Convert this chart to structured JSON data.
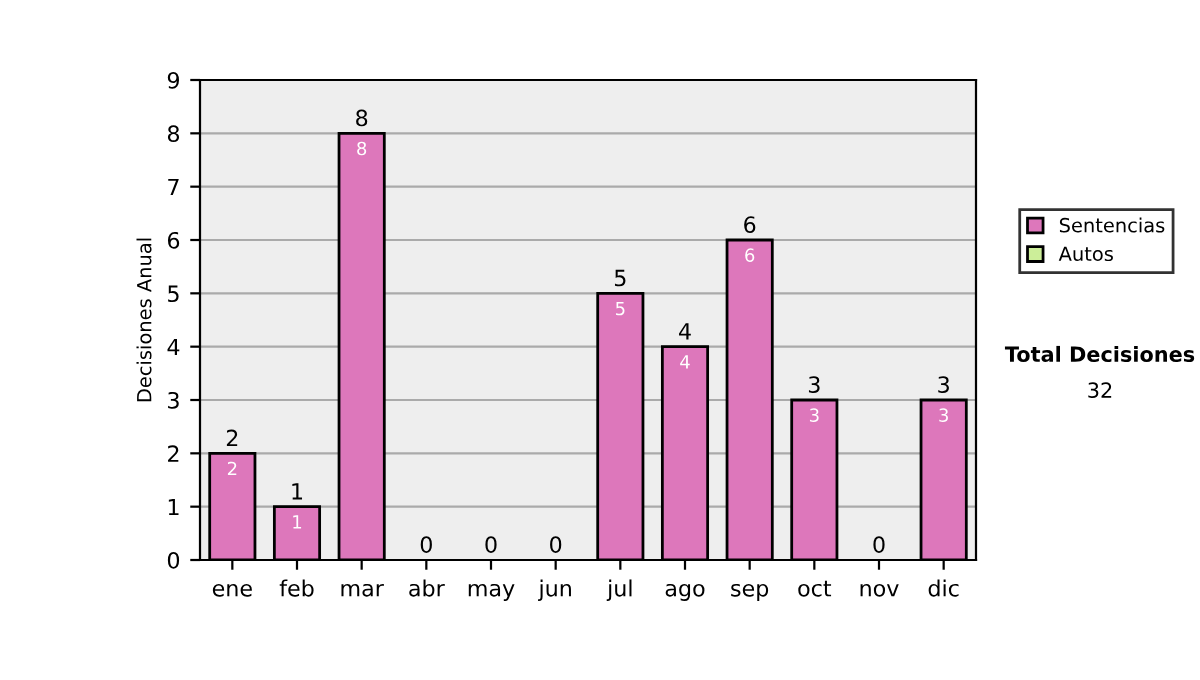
{
  "chart_data": {
    "type": "bar",
    "stacked": true,
    "ylabel": "Decisiones Anual",
    "categories": [
      "ene",
      "feb",
      "mar",
      "abr",
      "may",
      "jun",
      "jul",
      "ago",
      "sep",
      "oct",
      "nov",
      "dic"
    ],
    "series": [
      {
        "name": "Sentencias",
        "color": "#dd77bb",
        "values": [
          2,
          1,
          8,
          0,
          0,
          0,
          5,
          4,
          6,
          3,
          0,
          3
        ],
        "value_labels": [
          "2",
          "1",
          "8",
          null,
          null,
          null,
          "5",
          "4",
          "6",
          "3",
          null,
          "3"
        ]
      },
      {
        "name": "Autos",
        "color": "#ccee99",
        "values": [
          0,
          0,
          0,
          0,
          0,
          0,
          0,
          0,
          0,
          0,
          0,
          0
        ]
      }
    ],
    "totals": [
      "2",
      "1",
      "8",
      "0",
      "0",
      "0",
      "5",
      "4",
      "6",
      "3",
      "0",
      "3"
    ],
    "ylim": [
      0,
      9
    ],
    "yticks": [
      0,
      1,
      2,
      3,
      4,
      5,
      6,
      7,
      8,
      9
    ],
    "grid": "y",
    "legend": "right",
    "annotations": [
      "Total Decisiones",
      "32"
    ]
  }
}
